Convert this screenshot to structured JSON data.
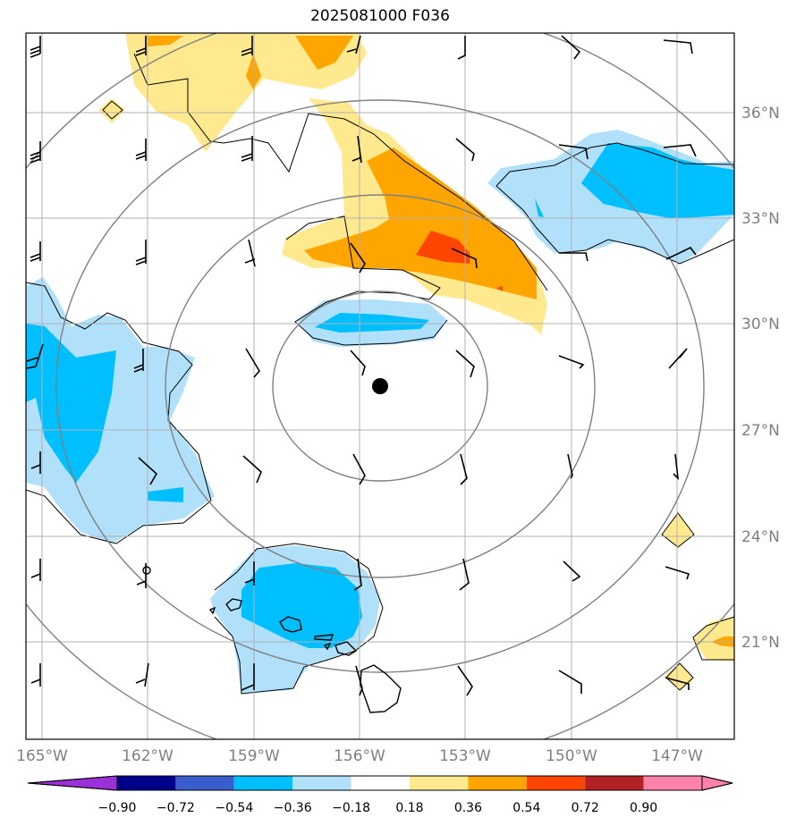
{
  "title": "2025081000 F036",
  "lon_labels": [
    "165°W",
    "162°W",
    "159°W",
    "156°W",
    "153°W",
    "150°W",
    "147°W"
  ],
  "lat_labels": [
    "36°N",
    "33°N",
    "30°N",
    "27°N",
    "24°N",
    "21°N"
  ],
  "colorbar": {
    "labels": [
      "−0.90",
      "−0.72",
      "−0.54",
      "−0.36",
      "−0.18",
      "0.18",
      "0.36",
      "0.54",
      "0.72",
      "0.90"
    ],
    "colors": [
      "#9b30d8",
      "#00008b",
      "#3a5fcd",
      "#00bfff",
      "#b0e0fa",
      "#ffffff",
      "#ffe98f",
      "#ffa500",
      "#ff4500",
      "#b22222",
      "#ff82ab"
    ]
  },
  "fill_colors": {
    "light_yellow": "#ffe98f",
    "orange": "#ffa500",
    "red_orange": "#ff4500",
    "light_blue": "#b0e0fa",
    "deep_sky_blue": "#00bfff"
  },
  "storm_center": {
    "lat": 28.3,
    "lon": -155.5
  }
}
